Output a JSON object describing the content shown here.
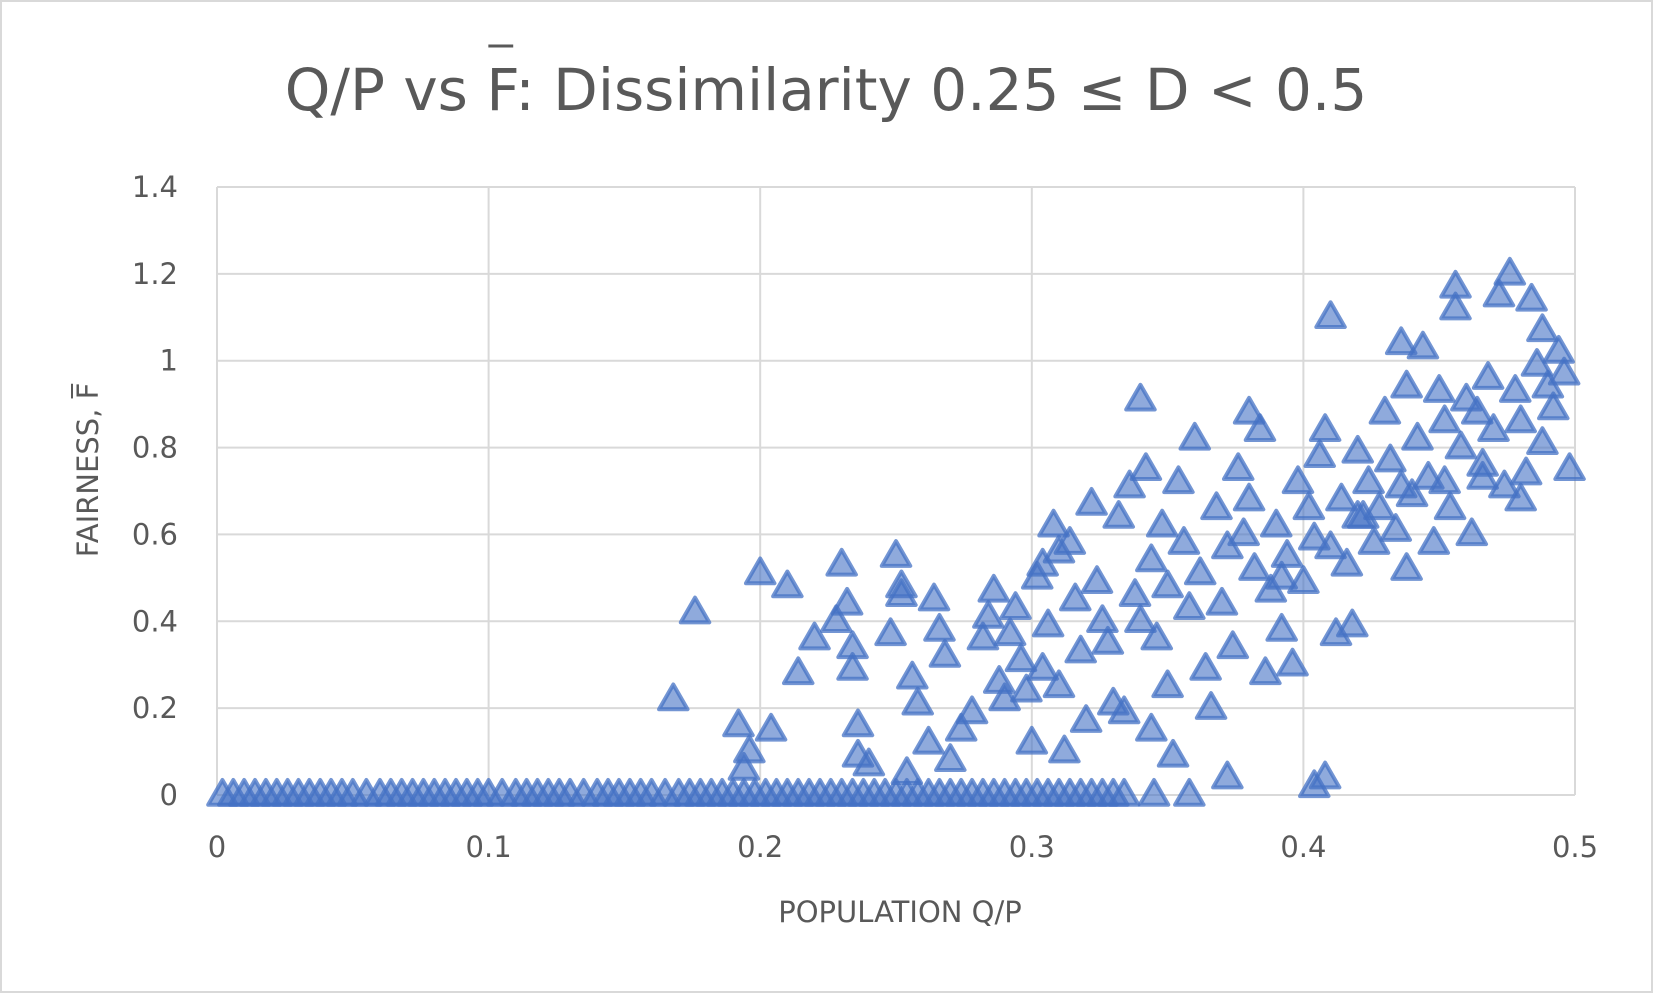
{
  "chart_data": {
    "type": "scatter",
    "title": "Q/P vs F: Dissimilarity 0.25 ≤ D < 0.5",
    "title_overbar_letter": "F",
    "xlabel": "POPULATION Q/P",
    "ylabel": "FAIRNESS, F",
    "xlim": [
      0,
      0.5
    ],
    "ylim": [
      0,
      1.4
    ],
    "x_ticks": [
      "0",
      "0.1",
      "0.2",
      "0.3",
      "0.4",
      "0.5"
    ],
    "y_ticks": [
      "0",
      "0.2",
      "0.4",
      "0.6",
      "0.8",
      "1",
      "1.2",
      "1.4"
    ],
    "grid": true,
    "legend": "none",
    "marker": "triangle",
    "series_color": "#4472c4",
    "series": [
      {
        "name": "F",
        "points": [
          [
            0.002,
            0
          ],
          [
            0.006,
            0
          ],
          [
            0.01,
            0
          ],
          [
            0.014,
            0
          ],
          [
            0.018,
            0
          ],
          [
            0.022,
            0
          ],
          [
            0.026,
            0
          ],
          [
            0.03,
            0
          ],
          [
            0.034,
            0
          ],
          [
            0.038,
            0
          ],
          [
            0.042,
            0
          ],
          [
            0.046,
            0
          ],
          [
            0.05,
            0
          ],
          [
            0.055,
            0
          ],
          [
            0.06,
            0
          ],
          [
            0.064,
            0
          ],
          [
            0.068,
            0
          ],
          [
            0.072,
            0
          ],
          [
            0.076,
            0
          ],
          [
            0.08,
            0
          ],
          [
            0.084,
            0
          ],
          [
            0.088,
            0
          ],
          [
            0.092,
            0
          ],
          [
            0.096,
            0
          ],
          [
            0.1,
            0
          ],
          [
            0.105,
            0
          ],
          [
            0.11,
            0
          ],
          [
            0.114,
            0
          ],
          [
            0.118,
            0
          ],
          [
            0.122,
            0
          ],
          [
            0.126,
            0
          ],
          [
            0.13,
            0
          ],
          [
            0.135,
            0
          ],
          [
            0.14,
            0
          ],
          [
            0.144,
            0
          ],
          [
            0.148,
            0
          ],
          [
            0.152,
            0
          ],
          [
            0.156,
            0
          ],
          [
            0.16,
            0
          ],
          [
            0.165,
            0
          ],
          [
            0.17,
            0
          ],
          [
            0.174,
            0
          ],
          [
            0.178,
            0
          ],
          [
            0.182,
            0
          ],
          [
            0.186,
            0
          ],
          [
            0.19,
            0
          ],
          [
            0.194,
            0
          ],
          [
            0.198,
            0
          ],
          [
            0.202,
            0
          ],
          [
            0.206,
            0
          ],
          [
            0.21,
            0
          ],
          [
            0.214,
            0
          ],
          [
            0.218,
            0
          ],
          [
            0.222,
            0
          ],
          [
            0.226,
            0
          ],
          [
            0.23,
            0
          ],
          [
            0.234,
            0
          ],
          [
            0.238,
            0
          ],
          [
            0.242,
            0
          ],
          [
            0.246,
            0
          ],
          [
            0.25,
            0
          ],
          [
            0.254,
            0
          ],
          [
            0.258,
            0
          ],
          [
            0.262,
            0
          ],
          [
            0.266,
            0
          ],
          [
            0.27,
            0
          ],
          [
            0.274,
            0
          ],
          [
            0.278,
            0
          ],
          [
            0.282,
            0
          ],
          [
            0.286,
            0
          ],
          [
            0.29,
            0
          ],
          [
            0.294,
            0
          ],
          [
            0.298,
            0
          ],
          [
            0.302,
            0
          ],
          [
            0.306,
            0
          ],
          [
            0.31,
            0
          ],
          [
            0.314,
            0
          ],
          [
            0.318,
            0
          ],
          [
            0.322,
            0
          ],
          [
            0.326,
            0
          ],
          [
            0.33,
            0
          ],
          [
            0.334,
            0
          ],
          [
            0.345,
            0
          ],
          [
            0.358,
            0
          ],
          [
            0.168,
            0.22
          ],
          [
            0.176,
            0.42
          ],
          [
            0.192,
            0.16
          ],
          [
            0.194,
            0.06
          ],
          [
            0.196,
            0.1
          ],
          [
            0.2,
            0.51
          ],
          [
            0.204,
            0.15
          ],
          [
            0.21,
            0.48
          ],
          [
            0.214,
            0.28
          ],
          [
            0.22,
            0.36
          ],
          [
            0.228,
            0.4
          ],
          [
            0.23,
            0.53
          ],
          [
            0.232,
            0.44
          ],
          [
            0.234,
            0.34
          ],
          [
            0.234,
            0.29
          ],
          [
            0.236,
            0.16
          ],
          [
            0.236,
            0.09
          ],
          [
            0.24,
            0.07
          ],
          [
            0.248,
            0.37
          ],
          [
            0.25,
            0.55
          ],
          [
            0.252,
            0.48
          ],
          [
            0.252,
            0.46
          ],
          [
            0.254,
            0.05
          ],
          [
            0.256,
            0.27
          ],
          [
            0.258,
            0.21
          ],
          [
            0.262,
            0.12
          ],
          [
            0.264,
            0.45
          ],
          [
            0.266,
            0.38
          ],
          [
            0.268,
            0.32
          ],
          [
            0.27,
            0.08
          ],
          [
            0.274,
            0.15
          ],
          [
            0.278,
            0.19
          ],
          [
            0.282,
            0.36
          ],
          [
            0.284,
            0.41
          ],
          [
            0.286,
            0.47
          ],
          [
            0.288,
            0.26
          ],
          [
            0.29,
            0.22
          ],
          [
            0.292,
            0.37
          ],
          [
            0.294,
            0.43
          ],
          [
            0.296,
            0.31
          ],
          [
            0.298,
            0.24
          ],
          [
            0.3,
            0.12
          ],
          [
            0.302,
            0.5
          ],
          [
            0.304,
            0.53
          ],
          [
            0.304,
            0.29
          ],
          [
            0.306,
            0.39
          ],
          [
            0.308,
            0.62
          ],
          [
            0.31,
            0.56
          ],
          [
            0.31,
            0.25
          ],
          [
            0.312,
            0.1
          ],
          [
            0.314,
            0.58
          ],
          [
            0.316,
            0.45
          ],
          [
            0.318,
            0.33
          ],
          [
            0.32,
            0.17
          ],
          [
            0.322,
            0.67
          ],
          [
            0.324,
            0.49
          ],
          [
            0.326,
            0.4
          ],
          [
            0.328,
            0.35
          ],
          [
            0.33,
            0.21
          ],
          [
            0.332,
            0.64
          ],
          [
            0.334,
            0.19
          ],
          [
            0.336,
            0.71
          ],
          [
            0.338,
            0.46
          ],
          [
            0.34,
            0.91
          ],
          [
            0.34,
            0.4
          ],
          [
            0.342,
            0.75
          ],
          [
            0.344,
            0.54
          ],
          [
            0.344,
            0.15
          ],
          [
            0.346,
            0.36
          ],
          [
            0.348,
            0.62
          ],
          [
            0.35,
            0.48
          ],
          [
            0.35,
            0.25
          ],
          [
            0.352,
            0.09
          ],
          [
            0.354,
            0.72
          ],
          [
            0.356,
            0.58
          ],
          [
            0.358,
            0.43
          ],
          [
            0.36,
            0.82
          ],
          [
            0.362,
            0.51
          ],
          [
            0.364,
            0.29
          ],
          [
            0.366,
            0.2
          ],
          [
            0.368,
            0.66
          ],
          [
            0.37,
            0.44
          ],
          [
            0.372,
            0.57
          ],
          [
            0.372,
            0.04
          ],
          [
            0.374,
            0.34
          ],
          [
            0.376,
            0.75
          ],
          [
            0.378,
            0.6
          ],
          [
            0.38,
            0.88
          ],
          [
            0.38,
            0.68
          ],
          [
            0.382,
            0.52
          ],
          [
            0.384,
            0.84
          ],
          [
            0.386,
            0.28
          ],
          [
            0.388,
            0.47
          ],
          [
            0.39,
            0.62
          ],
          [
            0.392,
            0.38
          ],
          [
            0.394,
            0.55
          ],
          [
            0.396,
            0.3
          ],
          [
            0.398,
            0.72
          ],
          [
            0.4,
            0.49
          ],
          [
            0.402,
            0.66
          ],
          [
            0.404,
            0.02
          ],
          [
            0.406,
            0.78
          ],
          [
            0.408,
            0.84
          ],
          [
            0.408,
            0.04
          ],
          [
            0.41,
            1.1
          ],
          [
            0.41,
            0.57
          ],
          [
            0.412,
            0.37
          ],
          [
            0.414,
            0.68
          ],
          [
            0.416,
            0.53
          ],
          [
            0.418,
            0.39
          ],
          [
            0.42,
            0.79
          ],
          [
            0.422,
            0.64
          ],
          [
            0.424,
            0.72
          ],
          [
            0.426,
            0.58
          ],
          [
            0.428,
            0.66
          ],
          [
            0.43,
            0.88
          ],
          [
            0.432,
            0.77
          ],
          [
            0.434,
            0.61
          ],
          [
            0.436,
            1.04
          ],
          [
            0.438,
            0.94
          ],
          [
            0.438,
            0.52
          ],
          [
            0.44,
            0.69
          ],
          [
            0.442,
            0.82
          ],
          [
            0.444,
            1.03
          ],
          [
            0.446,
            0.73
          ],
          [
            0.448,
            0.58
          ],
          [
            0.45,
            0.93
          ],
          [
            0.452,
            0.86
          ],
          [
            0.454,
            0.66
          ],
          [
            0.456,
            1.17
          ],
          [
            0.456,
            1.12
          ],
          [
            0.458,
            0.8
          ],
          [
            0.46,
            0.91
          ],
          [
            0.462,
            0.6
          ],
          [
            0.464,
            0.88
          ],
          [
            0.466,
            0.73
          ],
          [
            0.468,
            0.96
          ],
          [
            0.47,
            0.84
          ],
          [
            0.472,
            1.15
          ],
          [
            0.474,
            0.71
          ],
          [
            0.476,
            1.2
          ],
          [
            0.478,
            0.93
          ],
          [
            0.48,
            0.86
          ],
          [
            0.482,
            0.74
          ],
          [
            0.484,
            1.14
          ],
          [
            0.486,
            0.99
          ],
          [
            0.488,
            1.07
          ],
          [
            0.488,
            0.81
          ],
          [
            0.49,
            0.94
          ],
          [
            0.492,
            0.89
          ],
          [
            0.494,
            1.02
          ],
          [
            0.496,
            0.97
          ],
          [
            0.498,
            0.75
          ],
          [
            0.48,
            0.68
          ],
          [
            0.466,
            0.76
          ],
          [
            0.452,
            0.72
          ],
          [
            0.436,
            0.71
          ],
          [
            0.42,
            0.64
          ],
          [
            0.404,
            0.59
          ],
          [
            0.392,
            0.5
          ]
        ]
      }
    ]
  }
}
